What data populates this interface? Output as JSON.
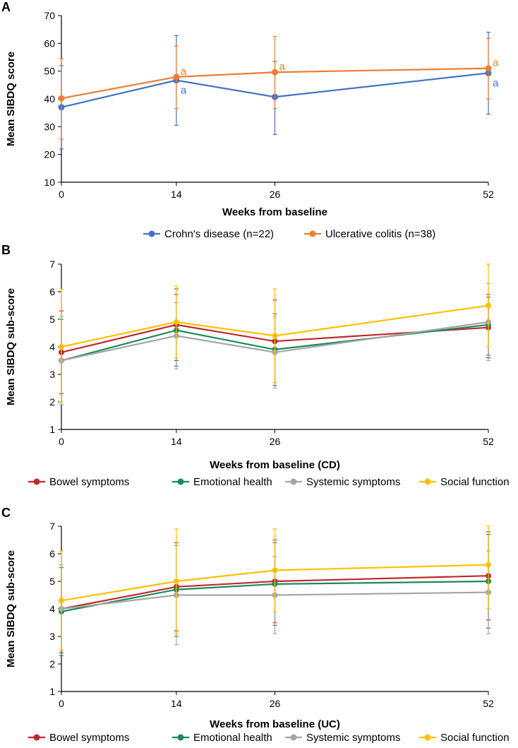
{
  "chart_data": [
    {
      "panel": "A",
      "type": "line",
      "x": [
        0,
        14,
        26,
        52
      ],
      "xlabel": "Weeks from baseline",
      "ylabel": "Mean SIBDQ score",
      "xlim": [
        0,
        52
      ],
      "ylim": [
        10,
        70
      ],
      "yticks": [
        10,
        20,
        30,
        40,
        50,
        60,
        70
      ],
      "legend_position": "bottom",
      "series": [
        {
          "name": "Crohn's disease (n=22)",
          "color": "#4472c4",
          "values": [
            37,
            46.7,
            40.7,
            49.3
          ],
          "err_low": [
            22,
            30.5,
            27.2,
            34.5
          ],
          "err_high": [
            52,
            62.8,
            53.5,
            64
          ],
          "annotations": [
            "",
            "a",
            "",
            "a"
          ]
        },
        {
          "name": "Ulcerative colitis (n=38)",
          "color": "#ed7d31",
          "values": [
            40.2,
            47.9,
            49.6,
            51
          ],
          "err_low": [
            25.5,
            36.5,
            36.5,
            40
          ],
          "err_high": [
            54.5,
            59,
            62.5,
            61.8
          ],
          "annotations": [
            "",
            "a",
            "a",
            "a"
          ]
        }
      ]
    },
    {
      "panel": "B",
      "type": "line",
      "x": [
        0,
        14,
        26,
        52
      ],
      "xlabel": "Weeks from baseline  (CD)",
      "ylabel": "Mean SIBDQ sub-score",
      "xlim": [
        0,
        52
      ],
      "ylim": [
        1,
        7
      ],
      "yticks": [
        1,
        2,
        3,
        4,
        5,
        6,
        7
      ],
      "legend_position": "bottom",
      "series": [
        {
          "name": "Bowel symptoms",
          "color": "#c0282d",
          "values": [
            3.8,
            4.8,
            4.2,
            4.7
          ],
          "err_low": [
            2.3,
            3.5,
            2.7,
            3.6
          ],
          "err_high": [
            5.3,
            6.1,
            5.7,
            5.8
          ]
        },
        {
          "name": "Emotional health",
          "color": "#1a8a5a",
          "values": [
            3.5,
            4.6,
            3.9,
            4.8
          ],
          "err_low": [
            2.0,
            3.3,
            2.6,
            3.7
          ],
          "err_high": [
            5.0,
            5.9,
            5.2,
            5.9
          ]
        },
        {
          "name": "Systemic symptoms",
          "color": "#a6a6a6",
          "values": [
            3.5,
            4.4,
            3.8,
            4.9
          ],
          "err_low": [
            1.9,
            3.2,
            2.5,
            3.5
          ],
          "err_high": [
            5.1,
            5.6,
            5.1,
            6.3
          ]
        },
        {
          "name": "Social function",
          "color": "#ffc000",
          "values": [
            4.0,
            4.9,
            4.4,
            5.5
          ],
          "err_low": [
            2.0,
            3.6,
            2.7,
            4.0
          ],
          "err_high": [
            6.1,
            6.2,
            6.1,
            7.0
          ]
        }
      ]
    },
    {
      "panel": "C",
      "type": "line",
      "x": [
        0,
        14,
        26,
        52
      ],
      "xlabel": "Weeks from baseline (UC)",
      "ylabel": "Mean SIBDQ sub-score",
      "xlim": [
        0,
        52
      ],
      "ylim": [
        1,
        7
      ],
      "yticks": [
        1,
        2,
        3,
        4,
        5,
        6,
        7
      ],
      "legend_position": "bottom",
      "series": [
        {
          "name": "Bowel symptoms",
          "color": "#c0282d",
          "values": [
            4.0,
            4.8,
            5.0,
            5.2
          ],
          "err_low": [
            2.4,
            3.2,
            3.5,
            3.6
          ],
          "err_high": [
            5.5,
            6.4,
            6.5,
            6.8
          ]
        },
        {
          "name": "Emotional health",
          "color": "#1a8a5a",
          "values": [
            3.9,
            4.7,
            4.9,
            5.0
          ],
          "err_low": [
            2.3,
            3.0,
            3.4,
            3.3
          ],
          "err_high": [
            5.5,
            6.3,
            6.4,
            6.7
          ]
        },
        {
          "name": "Systemic symptoms",
          "color": "#a6a6a6",
          "values": [
            4.0,
            4.5,
            4.5,
            4.6
          ],
          "err_low": [
            2.5,
            2.7,
            3.1,
            3.1
          ],
          "err_high": [
            5.6,
            6.3,
            5.9,
            6.1
          ]
        },
        {
          "name": "Social function",
          "color": "#ffc000",
          "values": [
            4.3,
            5.0,
            5.4,
            5.6
          ],
          "err_low": [
            2.5,
            3.1,
            3.9,
            4.0
          ],
          "err_high": [
            6.1,
            6.9,
            6.9,
            7.0
          ]
        }
      ]
    }
  ]
}
